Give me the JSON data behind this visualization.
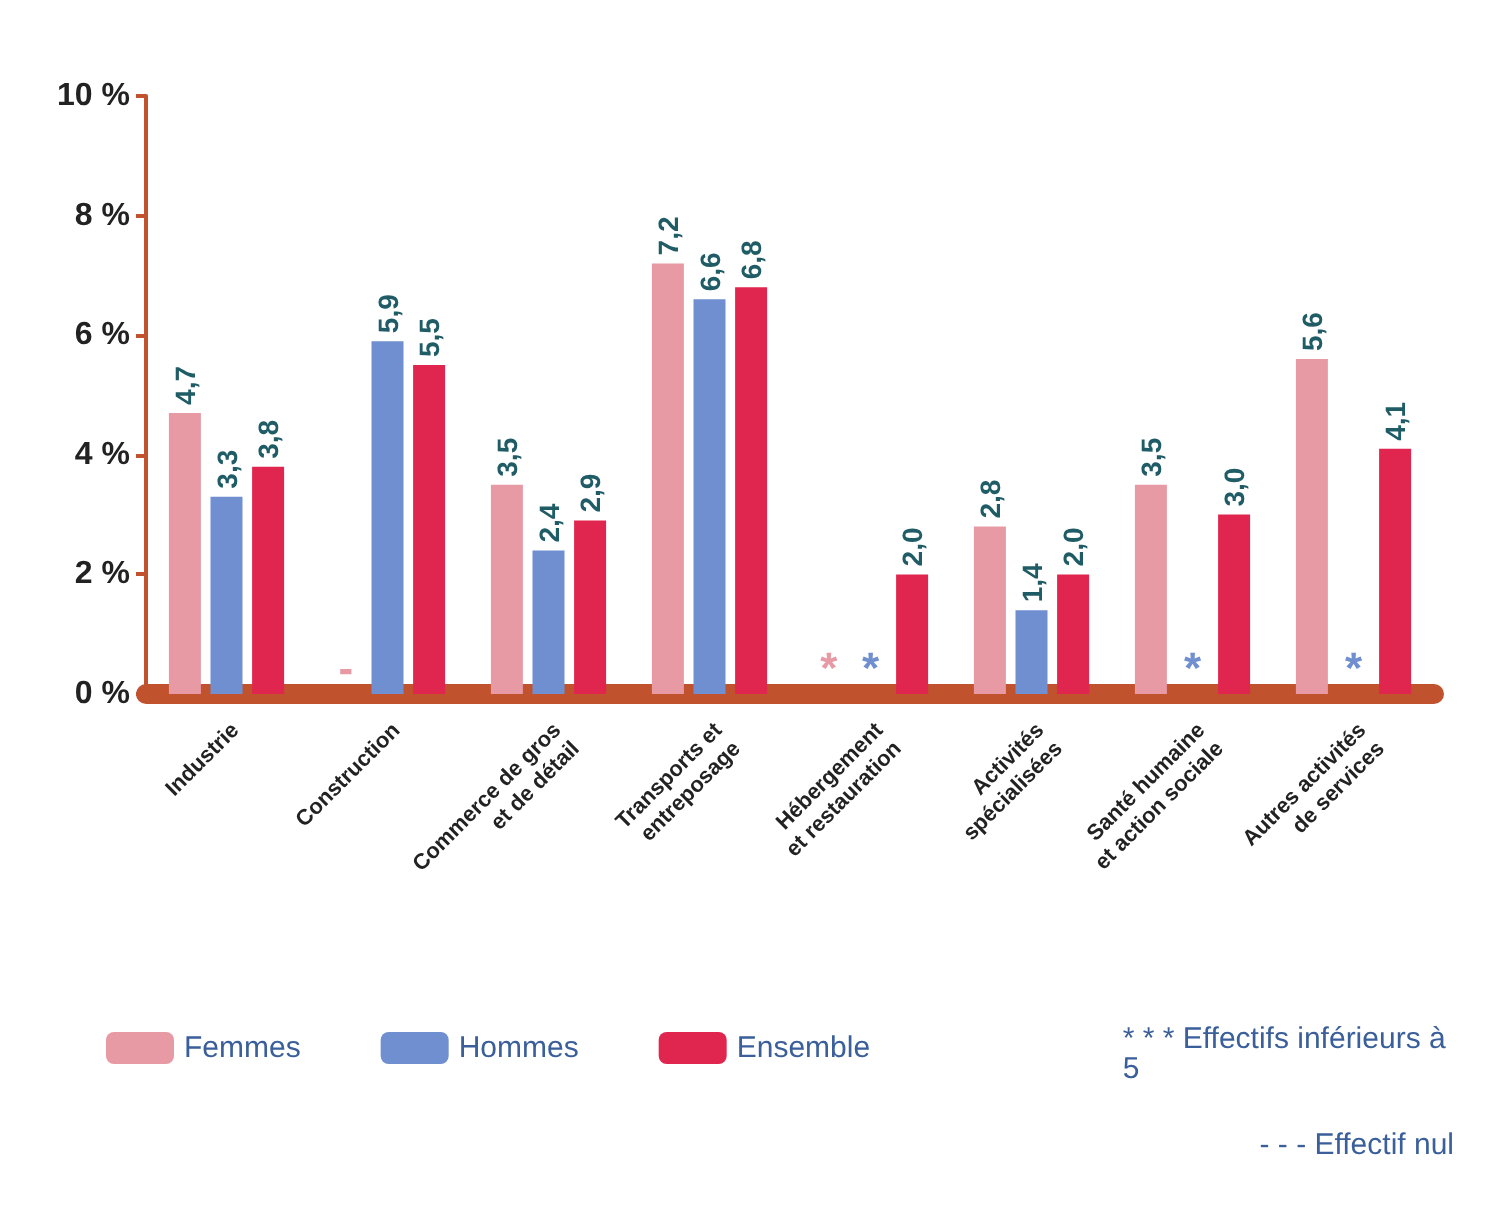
{
  "chart_data": {
    "type": "bar",
    "categories": [
      "Industrie",
      "Construction",
      "Commerce de gros\net de détail",
      "Transports et\nentreposage",
      "Hébergement\net restauration",
      "Activités\nspécialisées",
      "Santé humaine\net action sociale",
      "Autres activités\nde services"
    ],
    "series": [
      {
        "name": "Femmes",
        "color": "#e89aa4",
        "values": [
          4.7,
          null,
          3.5,
          7.2,
          null,
          2.8,
          3.5,
          5.6
        ],
        "value_labels": [
          "4,7",
          "-",
          "3,5",
          "7,2",
          "*",
          "2,8",
          "3,5",
          "5,6"
        ]
      },
      {
        "name": "Hommes",
        "color": "#6f8fd0",
        "values": [
          3.3,
          5.9,
          2.4,
          6.6,
          null,
          1.4,
          null,
          null
        ],
        "value_labels": [
          "3,3",
          "5,9",
          "2,4",
          "6,6",
          "*",
          "1,4",
          "*",
          "*"
        ]
      },
      {
        "name": "Ensemble",
        "color": "#e0264f",
        "values": [
          3.8,
          5.5,
          2.9,
          6.8,
          2.0,
          2.0,
          3.0,
          4.1
        ],
        "value_labels": [
          "3,8",
          "5,5",
          "2,9",
          "6,8",
          "2,0",
          "2,0",
          "3,0",
          "4,1"
        ]
      }
    ],
    "ylim": [
      0,
      10
    ],
    "yticks": [
      {
        "value": 0,
        "label": "0 %"
      },
      {
        "value": 2,
        "label": "2 %"
      },
      {
        "value": 4,
        "label": "4 %"
      },
      {
        "value": 6,
        "label": "6 %"
      },
      {
        "value": 8,
        "label": "8 %"
      },
      {
        "value": 10,
        "label": "10 %"
      }
    ],
    "grid": false,
    "legend": "bottom left",
    "annotations": [
      "* * * Effectifs inférieurs à 5",
      "- - - Effectif nul"
    ]
  }
}
